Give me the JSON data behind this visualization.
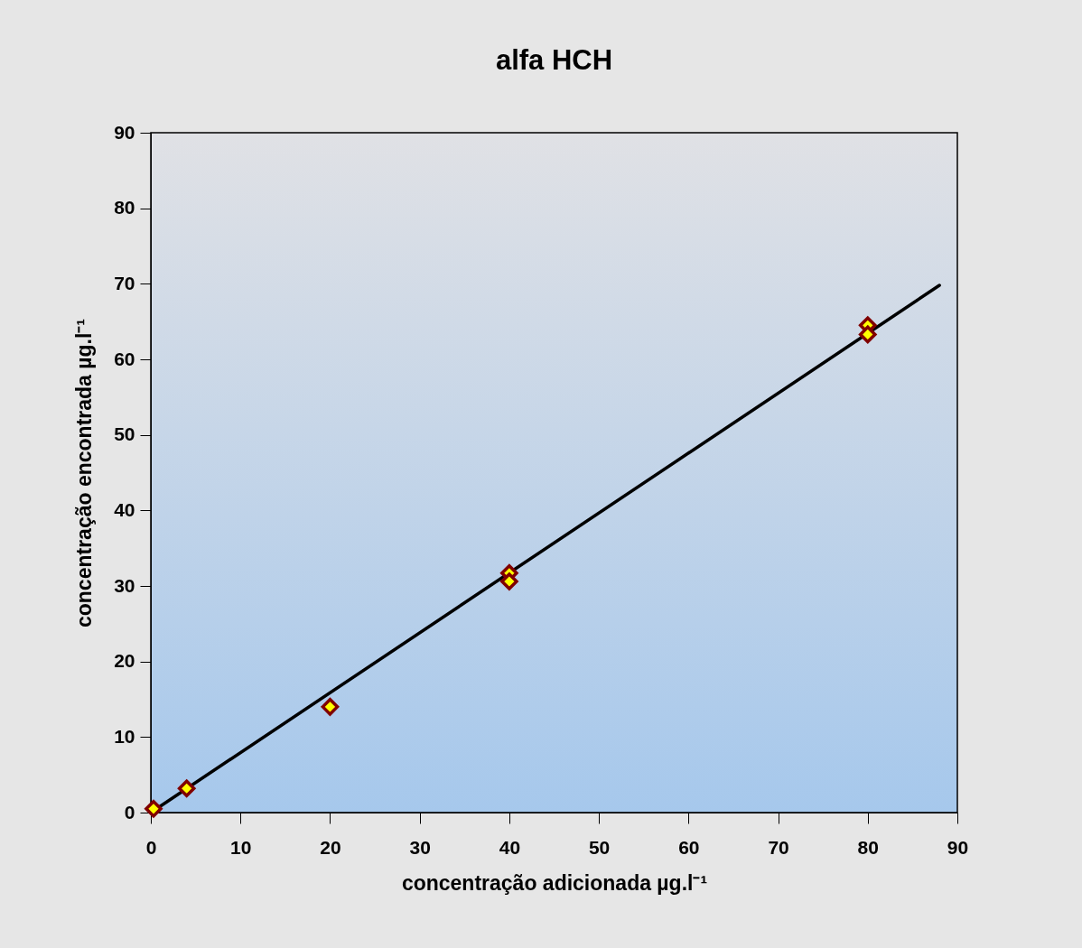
{
  "chart_data": {
    "type": "scatter",
    "title": "alfa HCH",
    "xlabel": "concentração adicionada µg.l⁻¹",
    "ylabel": "concentração encontrada µg.l⁻¹",
    "xlim": [
      0,
      90
    ],
    "ylim": [
      0,
      90
    ],
    "xticks": [
      0,
      10,
      20,
      30,
      40,
      50,
      60,
      70,
      80,
      90
    ],
    "yticks": [
      0,
      10,
      20,
      30,
      40,
      50,
      60,
      70,
      80,
      90
    ],
    "grid": false,
    "marker": "diamond",
    "series": [
      {
        "color": "#ffff00",
        "x": [
          0.3,
          4,
          20,
          40,
          40,
          80,
          80
        ],
        "values": [
          0.5,
          3.2,
          14,
          31.7,
          30.6,
          64.5,
          63.3
        ]
      },
      {
        "type": "line",
        "color": "#000000",
        "marker": "none",
        "line_style": "solid",
        "x": [
          0,
          88
        ],
        "values": [
          0,
          69.8
        ]
      }
    ]
  }
}
